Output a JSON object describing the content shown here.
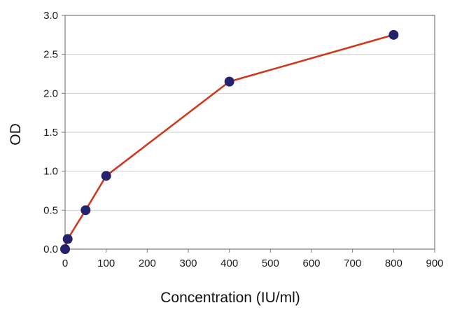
{
  "chart_data": {
    "type": "line",
    "xlabel": "Concentration (IU/ml)",
    "ylabel": "OD",
    "xlim": [
      0,
      900
    ],
    "ylim": [
      0,
      3.0
    ],
    "x_ticks": [
      "0",
      "100",
      "200",
      "300",
      "400",
      "500",
      "600",
      "700",
      "800",
      "900"
    ],
    "y_ticks": [
      "0.0",
      "0.5",
      "1.0",
      "1.5",
      "2.0",
      "2.5",
      "3.0"
    ],
    "grid": "horizontal",
    "series": [
      {
        "x": [
          0,
          6.25,
          50,
          100,
          400,
          800
        ],
        "y": [
          0.0,
          0.13,
          0.5,
          0.94,
          2.15,
          2.75
        ]
      }
    ],
    "colors": {
      "line": "#cc3b1f",
      "marker": "#23226a",
      "axis": "#7a7a7a",
      "grid": "#cfcfcf"
    }
  }
}
